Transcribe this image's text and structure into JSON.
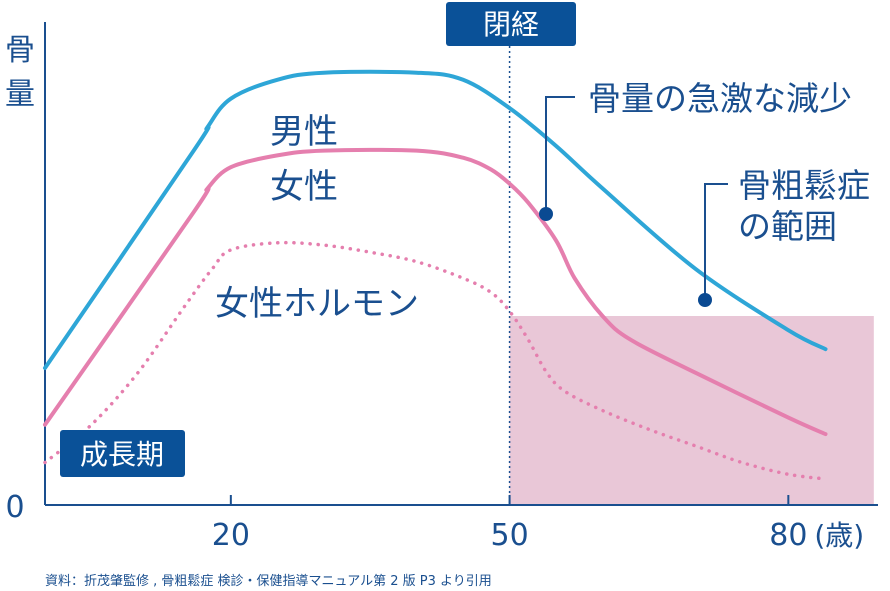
{
  "chart_data": {
    "type": "line",
    "ylabel": "骨量",
    "x_unit": "(歳)",
    "x_ticks": [
      "20",
      "50",
      "80"
    ],
    "x_tick_values": [
      20,
      50,
      80
    ],
    "y_zero_label": "0",
    "xlim": [
      0,
      90
    ],
    "ylim": [
      0,
      100
    ],
    "series": [
      {
        "name": "男性",
        "color": "#2ea6d7",
        "style": "solid",
        "points": [
          [
            0,
            29
          ],
          [
            16,
            75
          ],
          [
            17.5,
            80
          ],
          [
            20,
            86
          ],
          [
            25,
            90
          ],
          [
            30,
            91.5
          ],
          [
            40,
            91.5
          ],
          [
            45,
            90
          ],
          [
            50,
            84
          ],
          [
            55,
            76
          ],
          [
            60,
            67
          ],
          [
            70,
            50
          ],
          [
            80,
            37
          ],
          [
            84,
            33
          ]
        ]
      },
      {
        "name": "女性",
        "color": "#e57fae",
        "style": "solid",
        "points": [
          [
            0,
            17
          ],
          [
            16,
            62
          ],
          [
            17.5,
            67
          ],
          [
            20,
            71.5
          ],
          [
            25,
            74
          ],
          [
            30,
            75
          ],
          [
            40,
            75
          ],
          [
            45,
            73.5
          ],
          [
            48,
            71
          ],
          [
            50,
            68
          ],
          [
            52,
            64
          ],
          [
            55,
            56
          ],
          [
            57,
            48
          ],
          [
            60,
            40
          ],
          [
            63,
            35
          ],
          [
            70,
            28
          ],
          [
            80,
            18.5
          ],
          [
            84,
            15
          ]
        ]
      },
      {
        "name": "女性ホルモン",
        "color": "#e57fae",
        "style": "dotted",
        "points": [
          [
            0,
            9
          ],
          [
            5,
            17
          ],
          [
            10,
            28
          ],
          [
            15,
            42
          ],
          [
            18,
            50
          ],
          [
            20,
            54
          ],
          [
            25,
            55.5
          ],
          [
            30,
            55
          ],
          [
            35,
            53.5
          ],
          [
            40,
            51.5
          ],
          [
            45,
            48
          ],
          [
            48,
            45
          ],
          [
            50,
            41
          ],
          [
            52,
            35
          ],
          [
            54,
            28
          ],
          [
            56,
            24
          ],
          [
            60,
            20
          ],
          [
            65,
            16
          ],
          [
            70,
            12.5
          ],
          [
            75,
            9
          ],
          [
            80,
            6.5
          ],
          [
            84,
            5.5
          ]
        ]
      }
    ],
    "tags": [
      "閉経",
      "成長期"
    ],
    "osteoporosis_zone": {
      "label": "骨粗鬆症の範囲",
      "x_from": 50,
      "x_to": 90,
      "y_from": 0,
      "y_to": 40,
      "color": "#e9c7d7"
    },
    "menopause_age": 50,
    "annotations": [
      "骨量の急激な減少",
      "骨粗鬆症の範囲"
    ],
    "annotation_lines": [
      "骨量の急激な減少",
      "骨粗鬆症",
      "の範囲"
    ],
    "source": "資料：折茂肇監修 , 骨粗鬆症 検診・保健指導マニュアル第 2 版 P3 より引用"
  }
}
